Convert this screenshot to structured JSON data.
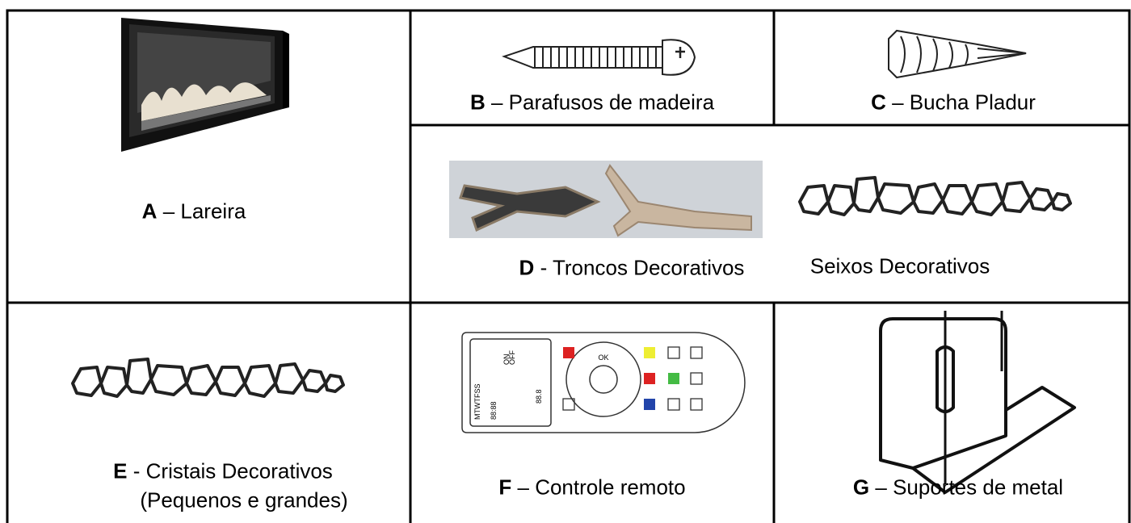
{
  "items": [
    {
      "letter": "A",
      "label": "– Lareira"
    },
    {
      "letter": "B",
      "label": "– Parafusos de madeira"
    },
    {
      "letter": "C",
      "label": "– Bucha Pladur"
    },
    {
      "letter": "D",
      "label": "- Troncos Decorativos"
    },
    {
      "label": "Seixos Decorativos"
    },
    {
      "letter": "E",
      "label": "- Cristais Decorativos",
      "label2": "(Pequenos e grandes)"
    },
    {
      "letter": "F",
      "label": "– Controle remoto"
    },
    {
      "letter": "G",
      "label": "– Suportes de metal"
    }
  ],
  "remote": {
    "days": "MTWTFSS",
    "ok": "OK",
    "on": "ON",
    "off": "OFF",
    "time": "88:88",
    "temp": "88.8"
  }
}
